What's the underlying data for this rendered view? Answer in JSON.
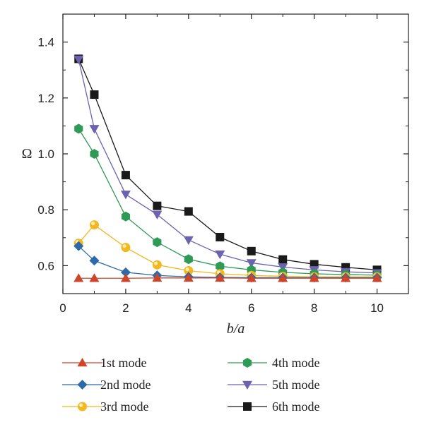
{
  "chart_data": {
    "type": "line",
    "xlabel": "b/a",
    "ylabel": "Ω",
    "xlim": [
      0,
      11
    ],
    "ylim": [
      0.5,
      1.5
    ],
    "xticks": [
      "0",
      "2",
      "4",
      "6",
      "8",
      "10"
    ],
    "yticks": [
      "0.6",
      "0.8",
      "1.0",
      "1.2",
      "1.4"
    ],
    "grid": false,
    "legend_position": "bottom",
    "x": [
      0.5,
      1,
      2,
      3,
      4,
      5,
      6,
      7,
      8,
      9,
      10
    ],
    "series": [
      {
        "name": "1st mode",
        "color": "#d0442a",
        "marker": "triangle-up",
        "values": [
          0.555,
          0.555,
          0.555,
          0.556,
          0.556,
          0.556,
          0.555,
          0.555,
          0.555,
          0.555,
          0.555
        ]
      },
      {
        "name": "2nd mode",
        "color": "#2e6aa8",
        "marker": "diamond",
        "values": [
          0.67,
          0.618,
          0.576,
          0.565,
          0.56,
          0.558,
          0.557,
          0.557,
          0.557,
          0.557,
          0.557
        ]
      },
      {
        "name": "3rd mode",
        "color": "#f2b81d",
        "marker": "circle",
        "values": [
          0.68,
          0.746,
          0.665,
          0.603,
          0.582,
          0.571,
          0.565,
          0.562,
          0.56,
          0.56,
          0.56
        ]
      },
      {
        "name": "4th mode",
        "color": "#2e9a55",
        "marker": "hexagon",
        "values": [
          1.09,
          1.0,
          0.776,
          0.684,
          0.623,
          0.598,
          0.585,
          0.576,
          0.571,
          0.568,
          0.566
        ]
      },
      {
        "name": "5th mode",
        "color": "#6b63b0",
        "marker": "triangle-down",
        "values": [
          1.338,
          1.09,
          0.855,
          0.783,
          0.692,
          0.641,
          0.61,
          0.595,
          0.585,
          0.578,
          0.574
        ]
      },
      {
        "name": "6th mode",
        "color": "#1a1a1a",
        "marker": "square",
        "values": [
          1.34,
          1.212,
          0.924,
          0.814,
          0.794,
          0.702,
          0.652,
          0.622,
          0.605,
          0.594,
          0.585
        ]
      }
    ]
  }
}
